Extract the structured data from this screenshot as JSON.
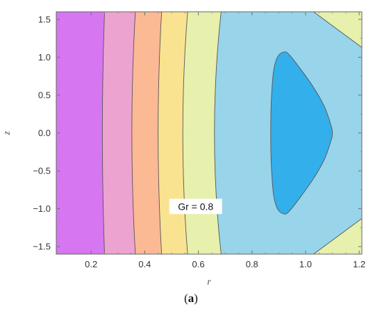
{
  "chart_data": {
    "type": "contour",
    "xlabel": "r",
    "ylabel": "z",
    "xlim": [
      0.07,
      1.21
    ],
    "ylim": [
      -1.6,
      1.6
    ],
    "x_ticks": [
      0.2,
      0.4,
      0.6,
      0.8,
      1.0,
      1.2
    ],
    "x_tick_labels": [
      "0.2",
      "0.4",
      "0.6",
      "0.8",
      "1.0",
      "1.2"
    ],
    "y_ticks": [
      1.5,
      1.0,
      0.5,
      0.0,
      -0.5,
      -1.0,
      -1.5
    ],
    "y_tick_labels": [
      "1.5",
      "1.0",
      "0.5",
      "0.0",
      "−0.5",
      "−1.0",
      "−1.5"
    ],
    "annotation": "Gr = 0.8",
    "annotation_at": {
      "r": 0.59,
      "z": -0.97
    },
    "bands": [
      {
        "color": "#d676f1",
        "r_edge": [
          0.25,
          0.242
        ]
      },
      {
        "color": "#eda3cf",
        "r_edge": [
          0.365,
          0.352
        ]
      },
      {
        "color": "#fbb994",
        "r_edge": [
          0.463,
          0.45
        ]
      },
      {
        "color": "#f9e390",
        "r_edge": [
          0.56,
          0.542
        ]
      },
      {
        "color": "#e7f0ad",
        "r_edge": [
          0.685,
          0.66
        ]
      },
      {
        "color": "#98d4ea",
        "r_edge": null
      }
    ],
    "outer_contour": {
      "color": "#e7f0ad",
      "top": [
        [
          1.03,
          1.6
        ],
        [
          1.21,
          1.13
        ]
      ],
      "bottom": [
        [
          1.03,
          -1.6
        ],
        [
          1.21,
          -1.13
        ]
      ]
    },
    "inner_region": {
      "color": "#33afeb",
      "boundary": [
        [
          0.92,
          1.07
        ],
        [
          0.94,
          1.03
        ],
        [
          0.98,
          0.85
        ],
        [
          1.03,
          0.6
        ],
        [
          1.07,
          0.35
        ],
        [
          1.095,
          0.1
        ],
        [
          1.1,
          0.0
        ],
        [
          1.095,
          -0.1
        ],
        [
          1.07,
          -0.35
        ],
        [
          1.03,
          -0.6
        ],
        [
          0.98,
          -0.85
        ],
        [
          0.94,
          -1.03
        ],
        [
          0.92,
          -1.07
        ],
        [
          0.895,
          -1.0
        ],
        [
          0.88,
          -0.8
        ],
        [
          0.872,
          -0.4
        ],
        [
          0.87,
          0.0
        ],
        [
          0.872,
          0.4
        ],
        [
          0.88,
          0.8
        ],
        [
          0.895,
          1.0
        ]
      ]
    }
  },
  "caption": "(a)",
  "caption_bold": "a"
}
